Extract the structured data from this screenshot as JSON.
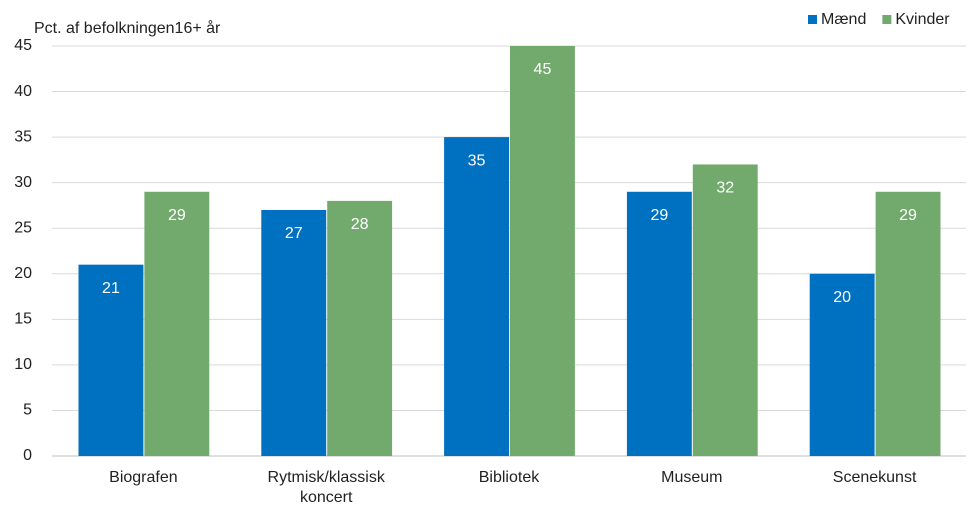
{
  "chart_data": {
    "type": "bar",
    "ylabel": "Pct. af befolkningen16+ år",
    "categories": [
      "Biografen",
      "Rytmisk/klassisk koncert",
      "Bibliotek",
      "Museum",
      "Scenekunst"
    ],
    "series": [
      {
        "name": "Mænd",
        "color": "#0070c0",
        "values": [
          21,
          27,
          35,
          29,
          20
        ]
      },
      {
        "name": "Kvinder",
        "color": "#72aa6e",
        "values": [
          29,
          28,
          45,
          32,
          29
        ]
      }
    ],
    "ylim": [
      0,
      45
    ],
    "yticks": [
      0,
      5,
      10,
      15,
      20,
      25,
      30,
      35,
      40,
      45
    ],
    "grid": true,
    "legend": "top-right"
  }
}
